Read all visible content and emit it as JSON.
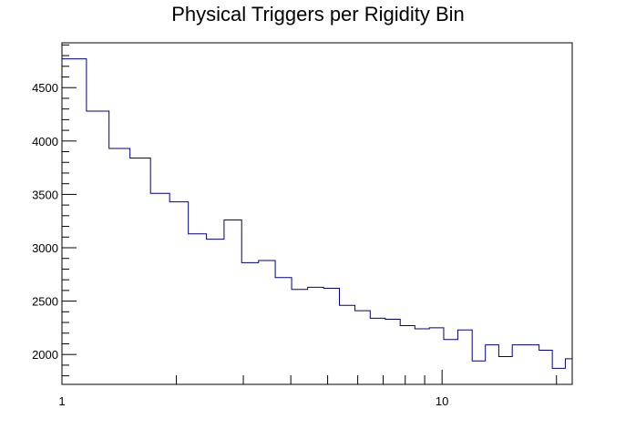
{
  "chart_data": {
    "type": "step",
    "title": "Physical Triggers per Rigidity Bin",
    "xlabel": "",
    "ylabel": "",
    "x_scale": "log",
    "xlim": [
      1,
      22
    ],
    "ylim": [
      1720,
      4920
    ],
    "x_tick_labels": [
      {
        "value": 1,
        "label": "1"
      },
      {
        "value": 10,
        "label": "10"
      }
    ],
    "y_tick_labels": [
      2000,
      2500,
      3000,
      3500,
      4000,
      4500
    ],
    "grid": false,
    "legend": "none",
    "line_color": "#000080",
    "bin_edges": [
      1.0,
      1.16,
      1.33,
      1.51,
      1.71,
      1.92,
      2.15,
      2.4,
      2.67,
      2.97,
      3.29,
      3.64,
      4.02,
      4.43,
      4.88,
      5.37,
      5.9,
      6.47,
      7.09,
      7.76,
      8.48,
      9.26,
      10.1,
      11.0,
      12.0,
      13.0,
      14.1,
      15.3,
      16.6,
      18.0,
      19.5,
      21.1,
      22.0
    ],
    "values": [
      4770,
      4280,
      3930,
      3840,
      3510,
      3430,
      3130,
      3080,
      3260,
      2860,
      2880,
      2720,
      2610,
      2630,
      2620,
      2460,
      2410,
      2340,
      2330,
      2270,
      2240,
      2250,
      2140,
      2230,
      1940,
      2090,
      1980,
      2090,
      2090,
      2040,
      1870,
      1960
    ]
  }
}
